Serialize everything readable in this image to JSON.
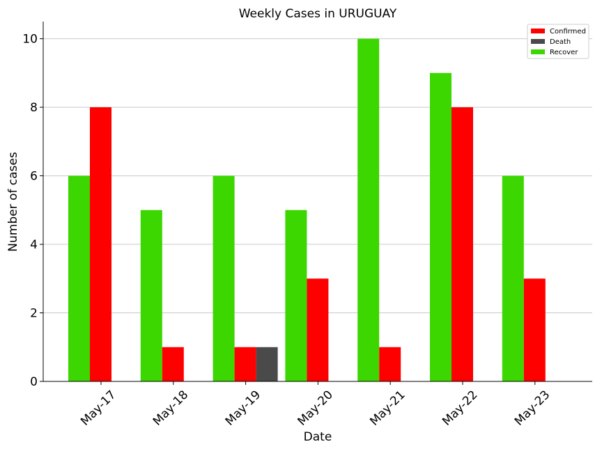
{
  "chart_data": {
    "type": "bar",
    "title": "Weekly Cases in URUGUAY",
    "xlabel": "Date",
    "ylabel": "Number of cases",
    "categories": [
      "May-17",
      "May-18",
      "May-19",
      "May-20",
      "May-21",
      "May-22",
      "May-23"
    ],
    "yticks": [
      0,
      2,
      4,
      6,
      8,
      10
    ],
    "ylim": [
      0,
      10.5
    ],
    "grid": "horizontal",
    "legend_position": "top-right",
    "bar_order": [
      "Recover",
      "Confirmed",
      "Death"
    ],
    "series": [
      {
        "name": "Confirmed",
        "color": "#ff0000",
        "values": [
          8,
          1,
          1,
          3,
          1,
          8,
          3
        ]
      },
      {
        "name": "Death",
        "color": "#4a4a4a",
        "values": [
          0,
          0,
          1,
          0,
          0,
          0,
          0
        ]
      },
      {
        "name": "Recover",
        "color": "#3cd600",
        "values": [
          6,
          5,
          6,
          5,
          10,
          9,
          6
        ]
      }
    ]
  }
}
